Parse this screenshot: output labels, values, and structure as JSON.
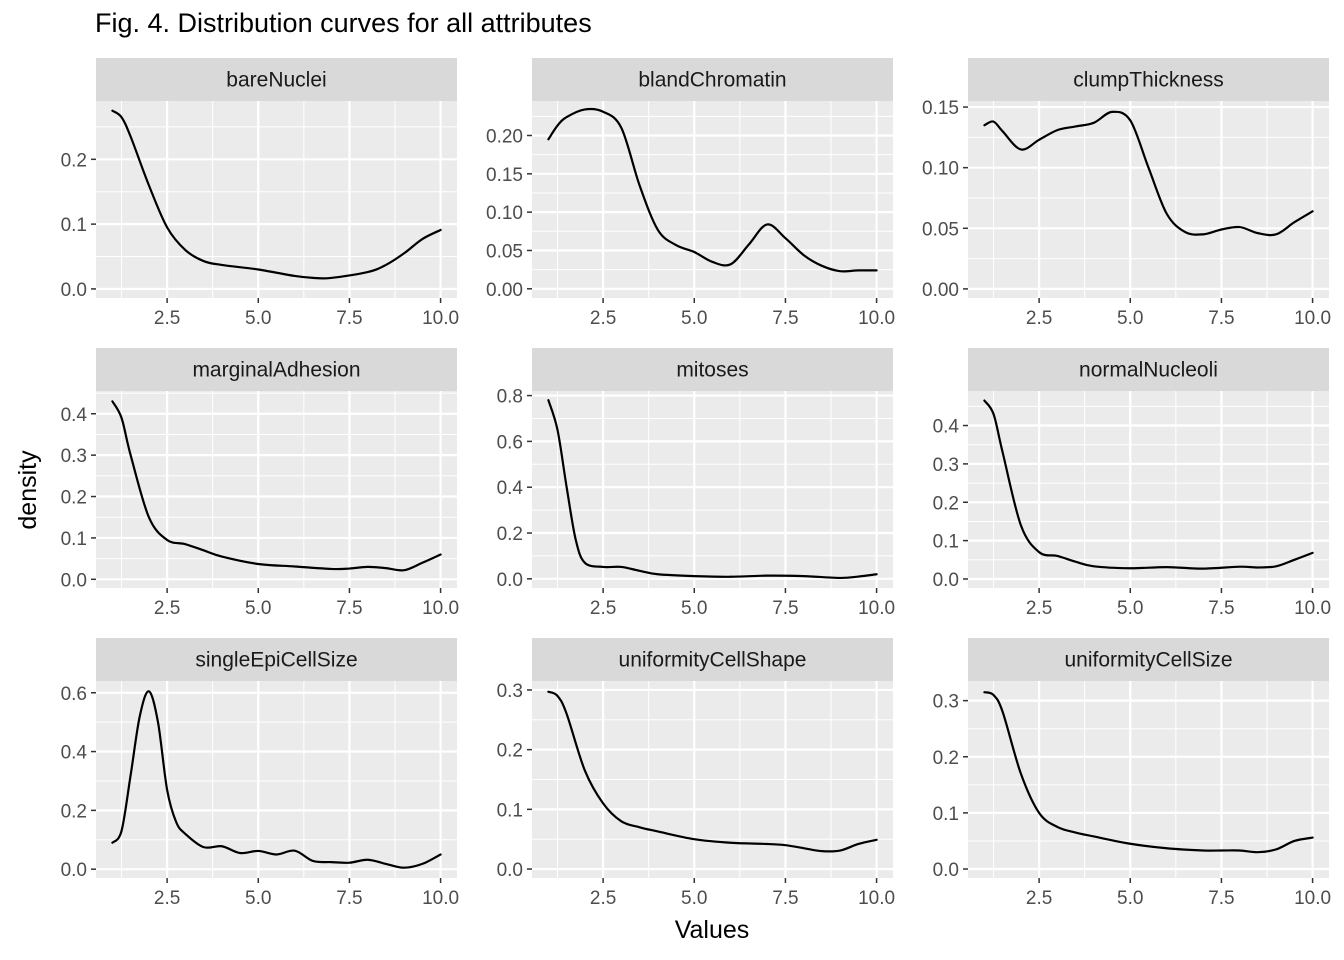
{
  "chart_data": {
    "type": "line",
    "title": "Fig. 4. Distribution curves for all attributes",
    "xlabel": "Values",
    "ylabel": "density",
    "facet_layout": "3x3 grid, free y scales",
    "grid": true,
    "colors": {
      "panel_bg": "#ebebeb",
      "strip_bg": "#d9d9d9",
      "grid": "#ffffff",
      "line": "#000000"
    },
    "panels": [
      {
        "name": "bareNuclei",
        "xlim": [
          0.55,
          10.45
        ],
        "ylim": [
          -0.014,
          0.29
        ],
        "xticks": [
          2.5,
          5.0,
          7.5,
          10.0
        ],
        "xtick_labels": [
          "2.5",
          "5.0",
          "7.5",
          "10.0"
        ],
        "yticks": [
          0.0,
          0.1,
          0.2
        ],
        "ytick_labels": [
          "0.0",
          "0.1",
          "0.2"
        ],
        "x": [
          1.0,
          1.25,
          1.5,
          2.0,
          2.5,
          3.0,
          3.5,
          4.0,
          5.0,
          6.0,
          6.5,
          7.0,
          8.0,
          8.5,
          9.0,
          9.5,
          10.0
        ],
        "y": [
          0.275,
          0.265,
          0.235,
          0.16,
          0.095,
          0.06,
          0.043,
          0.037,
          0.03,
          0.02,
          0.017,
          0.017,
          0.026,
          0.037,
          0.055,
          0.077,
          0.091
        ]
      },
      {
        "name": "blandChromatin",
        "xlim": [
          0.55,
          10.45
        ],
        "ylim": [
          -0.012,
          0.245
        ],
        "xticks": [
          2.5,
          5.0,
          7.5,
          10.0
        ],
        "xtick_labels": [
          "2.5",
          "5.0",
          "7.5",
          "10.0"
        ],
        "yticks": [
          0.0,
          0.05,
          0.1,
          0.15,
          0.2
        ],
        "ytick_labels": [
          "0.00",
          "0.05",
          "0.10",
          "0.15",
          "0.20"
        ],
        "x": [
          1.0,
          1.25,
          1.5,
          2.0,
          2.5,
          3.0,
          3.5,
          4.0,
          4.5,
          5.0,
          5.5,
          6.0,
          6.5,
          7.0,
          7.5,
          8.0,
          8.5,
          9.0,
          9.5,
          10.0
        ],
        "y": [
          0.195,
          0.213,
          0.224,
          0.234,
          0.231,
          0.21,
          0.135,
          0.077,
          0.057,
          0.048,
          0.035,
          0.032,
          0.058,
          0.084,
          0.066,
          0.044,
          0.03,
          0.023,
          0.024,
          0.024
        ]
      },
      {
        "name": "clumpThickness",
        "xlim": [
          0.55,
          10.45
        ],
        "ylim": [
          -0.0075,
          0.155
        ],
        "xticks": [
          2.5,
          5.0,
          7.5,
          10.0
        ],
        "xtick_labels": [
          "2.5",
          "5.0",
          "7.5",
          "10.0"
        ],
        "yticks": [
          0.0,
          0.05,
          0.1,
          0.15
        ],
        "ytick_labels": [
          "0.00",
          "0.05",
          "0.10",
          "0.15"
        ],
        "x": [
          1.0,
          1.25,
          1.5,
          2.0,
          2.5,
          3.0,
          3.5,
          4.0,
          4.5,
          5.0,
          5.5,
          6.0,
          6.5,
          7.0,
          7.5,
          8.0,
          8.5,
          9.0,
          9.5,
          10.0
        ],
        "y": [
          0.135,
          0.138,
          0.13,
          0.115,
          0.123,
          0.131,
          0.134,
          0.137,
          0.146,
          0.139,
          0.1,
          0.062,
          0.047,
          0.045,
          0.049,
          0.051,
          0.046,
          0.045,
          0.055,
          0.064
        ]
      },
      {
        "name": "marginalAdhesion",
        "xlim": [
          0.55,
          10.45
        ],
        "ylim": [
          -0.021,
          0.455
        ],
        "xticks": [
          2.5,
          5.0,
          7.5,
          10.0
        ],
        "xtick_labels": [
          "2.5",
          "5.0",
          "7.5",
          "10.0"
        ],
        "yticks": [
          0.0,
          0.1,
          0.2,
          0.3,
          0.4
        ],
        "ytick_labels": [
          "0.0",
          "0.1",
          "0.2",
          "0.3",
          "0.4"
        ],
        "x": [
          1.0,
          1.25,
          1.5,
          2.0,
          2.5,
          3.0,
          3.5,
          4.0,
          5.0,
          6.0,
          7.0,
          7.5,
          8.0,
          8.5,
          9.0,
          9.5,
          10.0
        ],
        "y": [
          0.43,
          0.39,
          0.3,
          0.15,
          0.095,
          0.085,
          0.07,
          0.055,
          0.037,
          0.031,
          0.025,
          0.026,
          0.03,
          0.027,
          0.022,
          0.04,
          0.06
        ]
      },
      {
        "name": "mitoses",
        "xlim": [
          0.55,
          10.45
        ],
        "ylim": [
          -0.04,
          0.82
        ],
        "xticks": [
          2.5,
          5.0,
          7.5,
          10.0
        ],
        "xtick_labels": [
          "2.5",
          "5.0",
          "7.5",
          "10.0"
        ],
        "yticks": [
          0.0,
          0.2,
          0.4,
          0.6,
          0.8
        ],
        "ytick_labels": [
          "0.0",
          "0.2",
          "0.4",
          "0.6",
          "0.8"
        ],
        "x": [
          1.0,
          1.25,
          1.5,
          1.75,
          2.0,
          2.5,
          3.0,
          3.5,
          4.0,
          5.0,
          6.0,
          7.0,
          8.0,
          9.0,
          9.5,
          10.0
        ],
        "y": [
          0.78,
          0.65,
          0.4,
          0.17,
          0.07,
          0.052,
          0.052,
          0.035,
          0.02,
          0.012,
          0.009,
          0.014,
          0.012,
          0.004,
          0.01,
          0.02
        ]
      },
      {
        "name": "normalNucleoli",
        "xlim": [
          0.55,
          10.45
        ],
        "ylim": [
          -0.0235,
          0.49
        ],
        "xticks": [
          2.5,
          5.0,
          7.5,
          10.0
        ],
        "xtick_labels": [
          "2.5",
          "5.0",
          "7.5",
          "10.0"
        ],
        "yticks": [
          0.0,
          0.1,
          0.2,
          0.3,
          0.4
        ],
        "ytick_labels": [
          "0.0",
          "0.1",
          "0.2",
          "0.3",
          "0.4"
        ],
        "x": [
          1.0,
          1.25,
          1.5,
          2.0,
          2.5,
          3.0,
          3.5,
          4.0,
          5.0,
          6.0,
          7.0,
          8.0,
          8.5,
          9.0,
          9.5,
          10.0
        ],
        "y": [
          0.465,
          0.43,
          0.33,
          0.14,
          0.07,
          0.06,
          0.045,
          0.033,
          0.028,
          0.031,
          0.027,
          0.032,
          0.03,
          0.033,
          0.05,
          0.068
        ]
      },
      {
        "name": "singleEpiCellSize",
        "xlim": [
          0.55,
          10.45
        ],
        "ylim": [
          -0.03,
          0.64
        ],
        "xticks": [
          2.5,
          5.0,
          7.5,
          10.0
        ],
        "xtick_labels": [
          "2.5",
          "5.0",
          "7.5",
          "10.0"
        ],
        "yticks": [
          0.0,
          0.2,
          0.4,
          0.6
        ],
        "ytick_labels": [
          "0.0",
          "0.2",
          "0.4",
          "0.6"
        ],
        "x": [
          1.0,
          1.25,
          1.5,
          1.75,
          2.0,
          2.25,
          2.5,
          2.75,
          3.0,
          3.5,
          4.0,
          4.5,
          5.0,
          5.5,
          6.0,
          6.5,
          7.0,
          7.5,
          8.0,
          8.5,
          9.0,
          9.5,
          10.0
        ],
        "y": [
          0.09,
          0.13,
          0.32,
          0.52,
          0.605,
          0.5,
          0.27,
          0.16,
          0.12,
          0.075,
          0.078,
          0.055,
          0.062,
          0.05,
          0.063,
          0.028,
          0.024,
          0.022,
          0.032,
          0.018,
          0.005,
          0.018,
          0.05
        ]
      },
      {
        "name": "uniformityCellShape",
        "xlim": [
          0.55,
          10.45
        ],
        "ylim": [
          -0.015,
          0.315
        ],
        "xticks": [
          2.5,
          5.0,
          7.5,
          10.0
        ],
        "xtick_labels": [
          "2.5",
          "5.0",
          "7.5",
          "10.0"
        ],
        "yticks": [
          0.0,
          0.1,
          0.2,
          0.3
        ],
        "ytick_labels": [
          "0.0",
          "0.1",
          "0.2",
          "0.3"
        ],
        "x": [
          1.0,
          1.25,
          1.5,
          2.0,
          2.5,
          3.0,
          3.5,
          4.0,
          5.0,
          6.0,
          7.0,
          7.5,
          8.0,
          8.5,
          9.0,
          9.5,
          10.0
        ],
        "y": [
          0.297,
          0.29,
          0.26,
          0.165,
          0.11,
          0.08,
          0.07,
          0.063,
          0.05,
          0.044,
          0.042,
          0.04,
          0.035,
          0.03,
          0.031,
          0.042,
          0.049
        ]
      },
      {
        "name": "uniformityCellSize",
        "xlim": [
          0.55,
          10.45
        ],
        "ylim": [
          -0.016,
          0.335
        ],
        "xticks": [
          2.5,
          5.0,
          7.5,
          10.0
        ],
        "xtick_labels": [
          "2.5",
          "5.0",
          "7.5",
          "10.0"
        ],
        "yticks": [
          0.0,
          0.1,
          0.2,
          0.3
        ],
        "ytick_labels": [
          "0.0",
          "0.1",
          "0.2",
          "0.3"
        ],
        "x": [
          1.0,
          1.25,
          1.5,
          2.0,
          2.5,
          3.0,
          3.5,
          4.0,
          5.0,
          6.0,
          7.0,
          7.5,
          8.0,
          8.5,
          9.0,
          9.5,
          10.0
        ],
        "y": [
          0.315,
          0.31,
          0.28,
          0.17,
          0.1,
          0.075,
          0.065,
          0.058,
          0.045,
          0.037,
          0.033,
          0.033,
          0.033,
          0.03,
          0.035,
          0.05,
          0.056
        ]
      }
    ]
  }
}
